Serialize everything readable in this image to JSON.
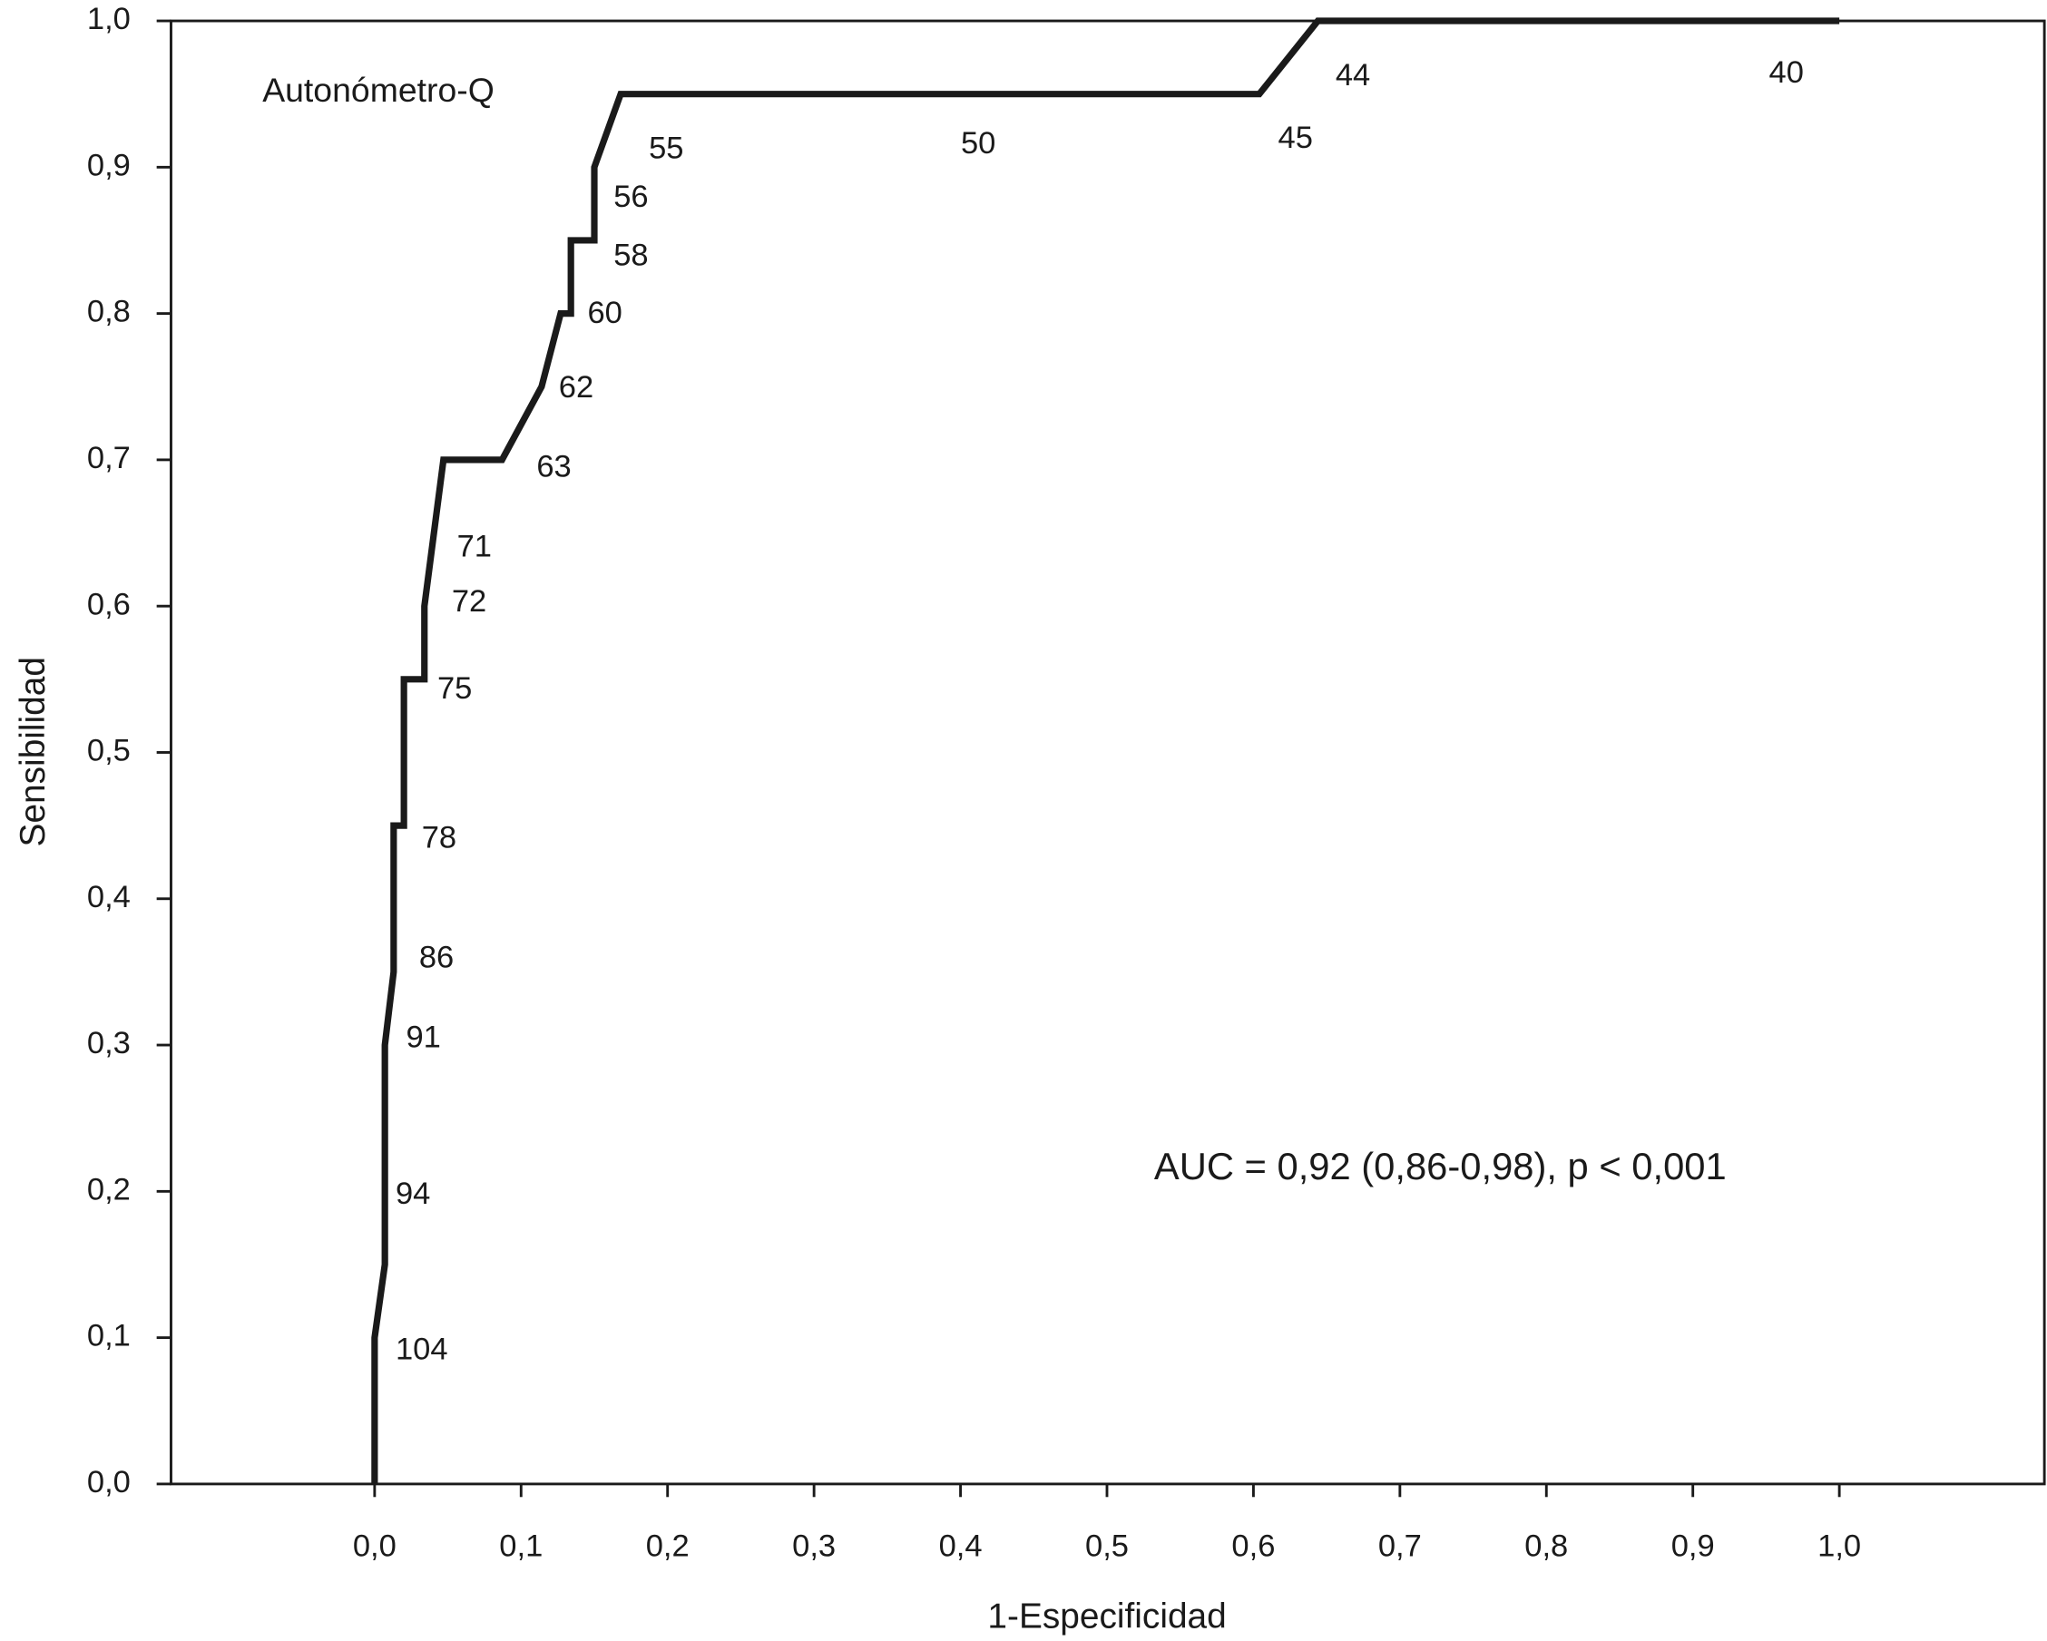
{
  "chart_data": {
    "type": "line",
    "x_label": "1-Especificidad",
    "y_label": "Sensibilidad",
    "annotations": [
      "Autonómetro-Q",
      "AUC = 0,92 (0,86-0,98), p < 0,001"
    ],
    "threshold_labels": [
      "104",
      "94",
      "91",
      "86",
      "78",
      "75",
      "72",
      "71",
      "63",
      "62",
      "60",
      "58",
      "56",
      "55",
      "50",
      "45",
      "44",
      "40"
    ],
    "x": [
      0,
      0,
      0.007,
      0.007,
      0.013,
      0.013,
      0.02,
      0.02,
      0.034,
      0.034,
      0.047,
      0.087,
      0.114,
      0.127,
      0.134,
      0.134,
      0.15,
      0.15,
      0.168,
      0.604,
      0.644,
      1.0
    ],
    "series": [
      {
        "name": "Autonómetro-Q",
        "color": "#1a1a1a",
        "values": [
          0,
          0.1,
          0.15,
          0.3,
          0.35,
          0.45,
          0.45,
          0.55,
          0.55,
          0.6,
          0.7,
          0.7,
          0.75,
          0.8,
          0.8,
          0.85,
          0.85,
          0.9,
          0.95,
          0.95,
          1.0,
          1.0
        ]
      }
    ],
    "xlim": [
      -0.139,
      1.14
    ],
    "ylim": [
      0,
      1
    ],
    "xticks": [
      {
        "value": 0,
        "label": "0,0"
      },
      {
        "value": 0.1,
        "label": "0,1"
      },
      {
        "value": 0.2,
        "label": "0,2"
      },
      {
        "value": 0.3,
        "label": "0,3"
      },
      {
        "value": 0.4,
        "label": "0,4"
      },
      {
        "value": 0.5,
        "label": "0,5"
      },
      {
        "value": 0.6,
        "label": "0,6"
      },
      {
        "value": 0.7,
        "label": "0,7"
      },
      {
        "value": 0.8,
        "label": "0,8"
      },
      {
        "value": 0.9,
        "label": "0,9"
      },
      {
        "value": 1.0,
        "label": "1,0"
      }
    ],
    "yticks": [
      {
        "value": 0,
        "label": "0,0"
      },
      {
        "value": 0.1,
        "label": "0,1"
      },
      {
        "value": 0.2,
        "label": "0,2"
      },
      {
        "value": 0.3,
        "label": "0,3"
      },
      {
        "value": 0.4,
        "label": "0,4"
      },
      {
        "value": 0.5,
        "label": "0,5"
      },
      {
        "value": 0.6,
        "label": "0,6"
      },
      {
        "value": 0.7,
        "label": "0,7"
      },
      {
        "value": 0.8,
        "label": "0,8"
      },
      {
        "value": 0.9,
        "label": "0,9"
      },
      {
        "value": 1.0,
        "label": "1,0"
      }
    ],
    "grid": false
  }
}
